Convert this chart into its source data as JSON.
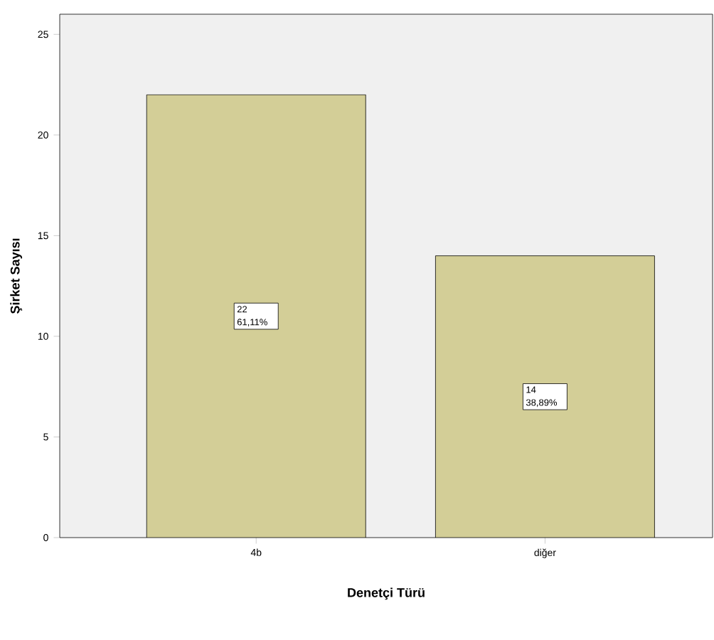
{
  "chart_data": {
    "type": "bar",
    "xlabel": "Denetçi Türü",
    "ylabel": "Şirket Sayısı",
    "categories": [
      "4b",
      "diğer"
    ],
    "values": [
      22,
      14
    ],
    "color": "#d3ce97",
    "value_labels": [
      "22 61,11%",
      "14 38,89%"
    ],
    "ylim": [
      0,
      26
    ],
    "yticks": [
      0,
      5,
      10,
      15,
      20,
      25
    ],
    "grid": false
  }
}
